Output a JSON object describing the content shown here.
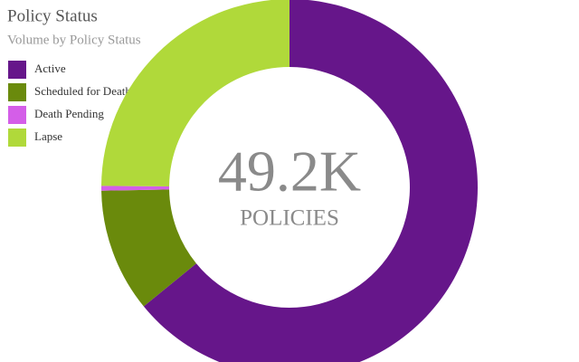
{
  "chart_data": {
    "type": "donut",
    "title": "Policy Status",
    "subtitle": "Volume by Policy Status",
    "categories": [
      "Active",
      "Scheduled for Death",
      "Death Pending",
      "Lapse"
    ],
    "values": [
      31540,
      5220,
      200,
      12240
    ],
    "colors": [
      "#66168a",
      "#6a8a0c",
      "#d45ee8",
      "#b0d93a"
    ],
    "center_label": "49.2K",
    "center_sublabel": "POLICIES"
  }
}
